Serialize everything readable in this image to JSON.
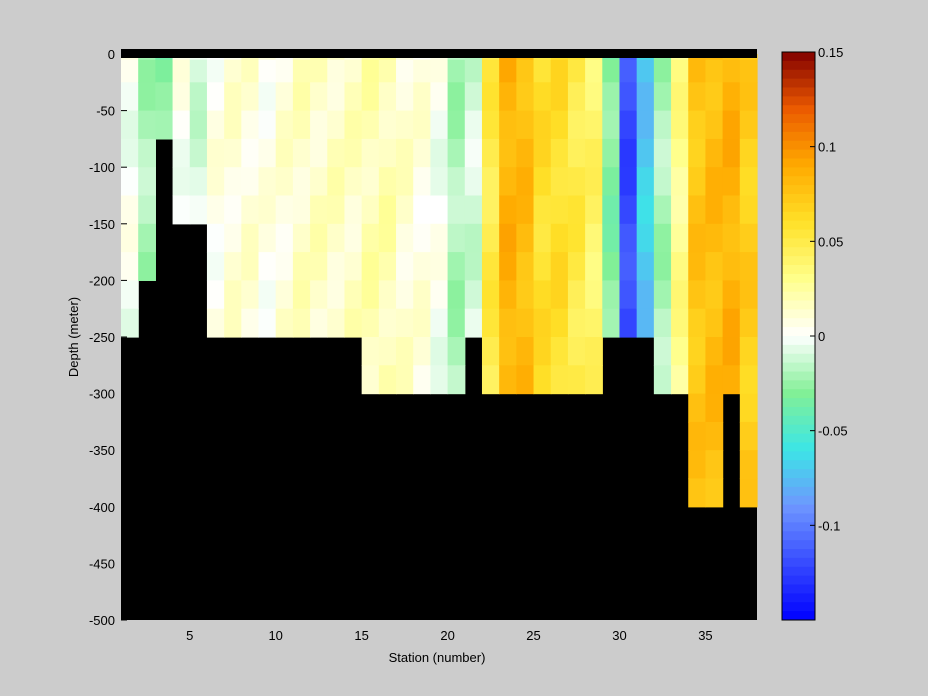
{
  "chart_data": {
    "type": "heatmap",
    "xlabel": "Station (number)",
    "ylabel": "Depth (meter)",
    "xlim": [
      1,
      38
    ],
    "ylim": [
      -500,
      0
    ],
    "x_ticks": [
      "5",
      "10",
      "15",
      "20",
      "25",
      "30",
      "35"
    ],
    "x_tick_values": [
      5,
      10,
      15,
      20,
      25,
      30,
      35
    ],
    "y_ticks": [
      "0",
      "-50",
      "-100",
      "-150",
      "-200",
      "-250",
      "-300",
      "-350",
      "-400",
      "-450",
      "-500"
    ],
    "y_tick_values": [
      0,
      -50,
      -100,
      -150,
      -200,
      -250,
      -300,
      -350,
      -400,
      -450,
      -500
    ],
    "colorbar": {
      "clim": [
        -0.15,
        0.15
      ],
      "ticks": [
        "0.15",
        "0.1",
        "0.05",
        "0",
        "-0.05",
        "-0.1"
      ],
      "tick_values": [
        0.15,
        0.1,
        0.05,
        0,
        -0.05,
        -0.1
      ]
    },
    "stations": [
      1,
      2,
      3,
      4,
      5,
      6,
      7,
      8,
      9,
      10,
      11,
      12,
      13,
      14,
      15,
      16,
      17,
      18,
      19,
      20,
      21,
      22,
      23,
      24,
      25,
      26,
      27,
      28,
      29,
      30,
      31,
      32,
      33,
      34,
      35,
      36,
      37
    ],
    "depth_levels": [
      0,
      -5,
      -25,
      -50,
      -75,
      -100,
      -125,
      -150,
      -175,
      -200,
      -225,
      -250,
      -275,
      -300,
      -325,
      -350,
      -375,
      -400
    ],
    "bottom_depth": [
      -250,
      -200,
      -75,
      -150,
      -150,
      -250,
      -250,
      -250,
      -250,
      -250,
      -250,
      -250,
      -250,
      -250,
      -300,
      -300,
      -300,
      -300,
      -300,
      -300,
      -250,
      -300,
      -300,
      -300,
      -300,
      -300,
      -300,
      -300,
      -250,
      -250,
      -250,
      -300,
      -300,
      -400,
      -400,
      -300,
      -400
    ],
    "station_values": [
      0.0,
      -0.02,
      -0.03,
      0.002,
      -0.01,
      0.005,
      0.01,
      0.01,
      0.005,
      0.01,
      0.015,
      0.015,
      0.015,
      0.015,
      0.02,
      0.02,
      0.012,
      0.008,
      0.0,
      -0.02,
      -0.01,
      0.05,
      0.085,
      0.08,
      0.06,
      0.06,
      0.05,
      0.04,
      -0.03,
      -0.12,
      -0.07,
      -0.02,
      0.03,
      0.075,
      0.08,
      0.085,
      0.07
    ]
  }
}
